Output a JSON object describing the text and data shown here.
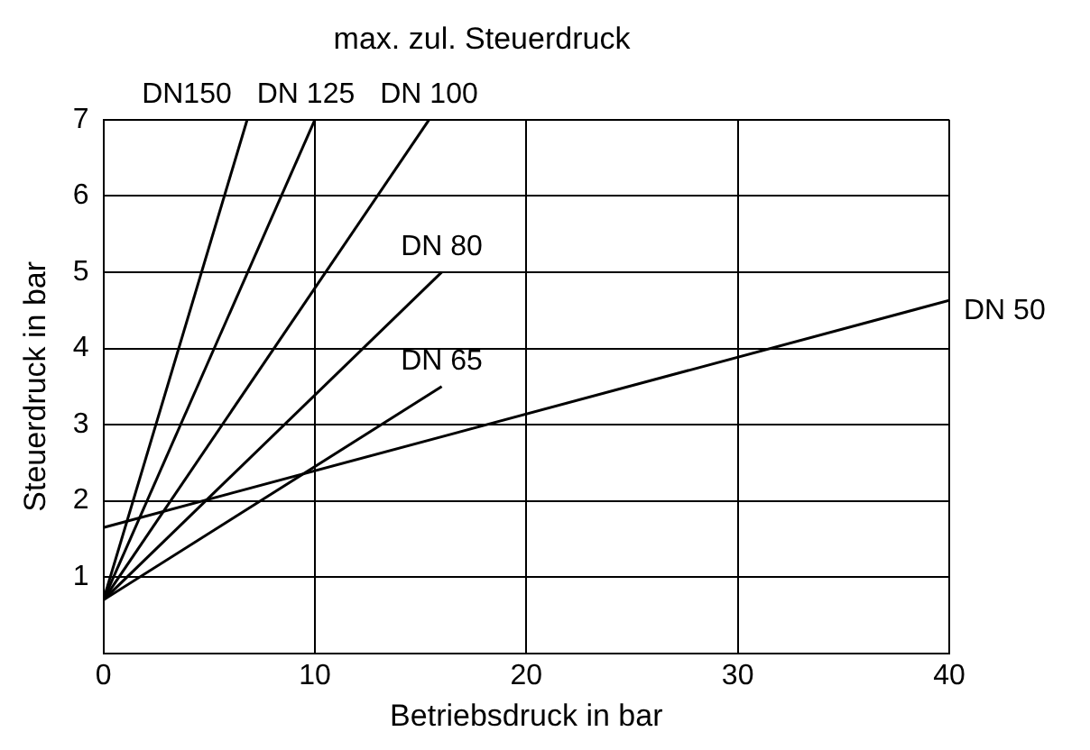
{
  "chart_data": {
    "type": "line",
    "title": "max. zul. Steuerdruck",
    "xlabel": "Betriebsdruck in bar",
    "ylabel": "Steuerdruck in bar",
    "xlim": [
      0,
      40
    ],
    "ylim": [
      0,
      7
    ],
    "xticks": [
      0,
      10,
      20,
      30,
      40
    ],
    "yticks": [
      {
        "value": 0,
        "label": null
      },
      1,
      2,
      3,
      4,
      5,
      6,
      7
    ],
    "grid": true,
    "legend": false,
    "marker": "none",
    "line_style": "solid",
    "series": [
      {
        "name": "DN150",
        "color": "#000000",
        "x": [
          0,
          6.8
        ],
        "values": [
          0.7,
          7
        ]
      },
      {
        "name": "DN 125",
        "color": "#000000",
        "x": [
          0,
          10
        ],
        "values": [
          0.7,
          7
        ]
      },
      {
        "name": "DN 100",
        "color": "#000000",
        "x": [
          0,
          15.4
        ],
        "values": [
          0.7,
          7
        ]
      },
      {
        "name": "DN 80",
        "color": "#000000",
        "x": [
          0,
          16
        ],
        "values": [
          0.7,
          5
        ]
      },
      {
        "name": "DN 65",
        "color": "#000000",
        "x": [
          0,
          16
        ],
        "values": [
          0.7,
          3.5
        ]
      },
      {
        "name": "DN 50",
        "color": "#000000",
        "x": [
          0,
          40
        ],
        "values": [
          1.65,
          4.63
        ]
      }
    ]
  }
}
